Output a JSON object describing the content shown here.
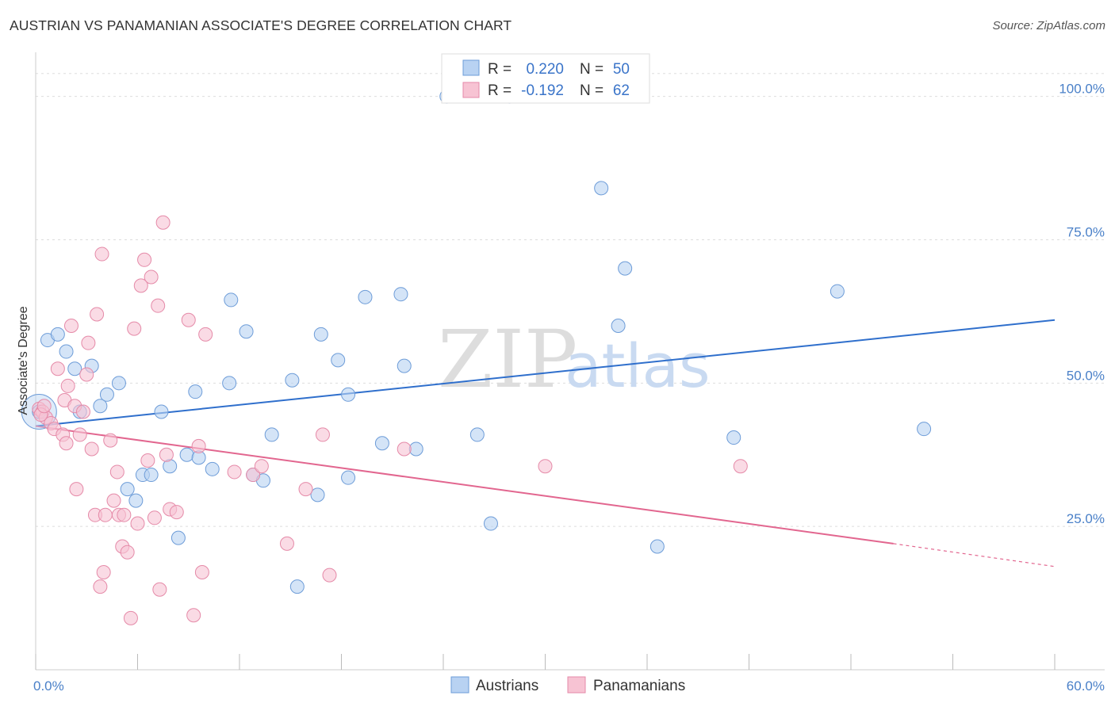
{
  "header": {
    "title": "AUSTRIAN VS PANAMANIAN ASSOCIATE'S DEGREE CORRELATION CHART",
    "source": "Source: ZipAtlas.com"
  },
  "watermark": {
    "part1": "ZIP",
    "part2": "atlas"
  },
  "colors": {
    "blue_fill": "#b8d2f2",
    "blue_stroke": "#6d9cd8",
    "blue_line": "#2f6fcc",
    "pink_fill": "#f7c3d3",
    "pink_stroke": "#e58aa8",
    "pink_line": "#e2668f",
    "tick_text": "#4a80c8",
    "grid": "#dddddd"
  },
  "stats_box": {
    "rows": [
      {
        "r_label": "R =",
        "r_value": "0.220",
        "n_label": "N =",
        "n_value": "50"
      },
      {
        "r_label": "R =",
        "r_value": "-0.192",
        "n_label": "N =",
        "n_value": "62"
      }
    ]
  },
  "chart_data": {
    "type": "scatter",
    "title": "AUSTRIAN VS PANAMANIAN ASSOCIATE'S DEGREE CORRELATION CHART",
    "xlabel": "",
    "ylabel": "Associate's Degree",
    "xlim": [
      0,
      60
    ],
    "ylim": [
      0,
      107
    ],
    "x_tick_labels": [
      {
        "value": 0,
        "label": "0.0%"
      },
      {
        "value": 60,
        "label": "60.0%"
      }
    ],
    "x_minor_ticks": [
      0,
      6,
      12,
      18,
      24,
      30,
      36,
      42,
      48,
      54,
      60
    ],
    "y_ticks": [
      {
        "value": 25,
        "label": "25.0%"
      },
      {
        "value": 50,
        "label": "50.0%"
      },
      {
        "value": 75,
        "label": "75.0%"
      },
      {
        "value": 100,
        "label": "100.0%"
      }
    ],
    "grid": true,
    "legend_position": "bottom",
    "series": [
      {
        "name": "Austrians",
        "color": "#b8d2f2",
        "points": [
          [
            0.2,
            45.0
          ],
          [
            0.7,
            57.5
          ],
          [
            1.3,
            58.5
          ],
          [
            1.8,
            55.5
          ],
          [
            2.3,
            52.5
          ],
          [
            2.6,
            45.0
          ],
          [
            3.3,
            53.0
          ],
          [
            3.8,
            46.0
          ],
          [
            4.2,
            48.0
          ],
          [
            4.9,
            50.0
          ],
          [
            5.4,
            31.5
          ],
          [
            5.9,
            29.5
          ],
          [
            6.3,
            34.0
          ],
          [
            6.8,
            34.0
          ],
          [
            7.4,
            45.0
          ],
          [
            7.9,
            35.5
          ],
          [
            8.4,
            23.0
          ],
          [
            8.9,
            37.5
          ],
          [
            9.4,
            48.5
          ],
          [
            9.6,
            37.0
          ],
          [
            10.4,
            35.0
          ],
          [
            11.4,
            50.0
          ],
          [
            11.5,
            64.5
          ],
          [
            12.4,
            59.0
          ],
          [
            12.8,
            34.0
          ],
          [
            13.4,
            33.0
          ],
          [
            13.9,
            41.0
          ],
          [
            15.1,
            50.5
          ],
          [
            15.4,
            14.5
          ],
          [
            16.6,
            30.5
          ],
          [
            16.8,
            58.5
          ],
          [
            17.8,
            54.0
          ],
          [
            18.4,
            48.0
          ],
          [
            18.4,
            33.5
          ],
          [
            19.4,
            65.0
          ],
          [
            20.4,
            39.5
          ],
          [
            21.5,
            65.5
          ],
          [
            21.7,
            53.0
          ],
          [
            22.4,
            38.5
          ],
          [
            24.2,
            100.0
          ],
          [
            26.0,
            41.0
          ],
          [
            26.8,
            25.5
          ],
          [
            27.9,
            100.0
          ],
          [
            33.3,
            84.0
          ],
          [
            34.3,
            60.0
          ],
          [
            34.7,
            70.0
          ],
          [
            36.6,
            21.5
          ],
          [
            41.1,
            40.5
          ],
          [
            47.2,
            66.0
          ],
          [
            52.3,
            42.0
          ]
        ]
      },
      {
        "name": "Panamanians",
        "color": "#f7c3d3",
        "points": [
          [
            0.2,
            45.5
          ],
          [
            0.4,
            45.0
          ],
          [
            0.6,
            44.0
          ],
          [
            0.9,
            43.0
          ],
          [
            1.1,
            42.0
          ],
          [
            1.3,
            52.5
          ],
          [
            1.6,
            41.0
          ],
          [
            1.7,
            47.0
          ],
          [
            1.8,
            39.5
          ],
          [
            1.9,
            49.5
          ],
          [
            2.1,
            60.0
          ],
          [
            2.3,
            46.0
          ],
          [
            2.4,
            31.5
          ],
          [
            2.6,
            41.0
          ],
          [
            2.8,
            45.0
          ],
          [
            3.0,
            51.5
          ],
          [
            3.1,
            57.0
          ],
          [
            3.3,
            38.5
          ],
          [
            3.5,
            27.0
          ],
          [
            3.6,
            62.0
          ],
          [
            3.8,
            14.5
          ],
          [
            3.9,
            72.5
          ],
          [
            4.1,
            27.0
          ],
          [
            4.4,
            40.0
          ],
          [
            4.6,
            29.5
          ],
          [
            4.8,
            34.5
          ],
          [
            4.9,
            27.0
          ],
          [
            5.1,
            21.5
          ],
          [
            5.2,
            27.0
          ],
          [
            5.4,
            20.5
          ],
          [
            5.6,
            9.0
          ],
          [
            5.8,
            59.5
          ],
          [
            6.0,
            25.5
          ],
          [
            6.2,
            67.0
          ],
          [
            6.4,
            71.5
          ],
          [
            6.6,
            36.5
          ],
          [
            6.8,
            68.5
          ],
          [
            7.0,
            26.5
          ],
          [
            7.2,
            63.5
          ],
          [
            7.3,
            14.0
          ],
          [
            7.5,
            78.0
          ],
          [
            7.7,
            37.5
          ],
          [
            7.9,
            28.0
          ],
          [
            8.3,
            27.5
          ],
          [
            9.0,
            61.0
          ],
          [
            9.3,
            9.5
          ],
          [
            9.6,
            39.0
          ],
          [
            9.8,
            17.0
          ],
          [
            10.0,
            58.5
          ],
          [
            11.7,
            34.5
          ],
          [
            12.8,
            34.0
          ],
          [
            13.3,
            35.5
          ],
          [
            14.8,
            22.0
          ],
          [
            15.9,
            31.5
          ],
          [
            16.9,
            41.0
          ],
          [
            17.3,
            16.5
          ],
          [
            21.7,
            38.5
          ],
          [
            30.0,
            35.5
          ],
          [
            41.5,
            35.5
          ],
          [
            0.3,
            44.5
          ],
          [
            0.5,
            46.0
          ],
          [
            4.0,
            17.0
          ]
        ]
      }
    ],
    "trend_lines": [
      {
        "series": "Austrians",
        "x0": 0,
        "y0": 42.5,
        "x1": 60,
        "y1": 61.0
      },
      {
        "series": "Panamanians",
        "x0": 0,
        "y0": 42.5,
        "x1": 50.5,
        "y1": 22.0,
        "dash_to_x": 60,
        "dash_to_y": 18.0
      }
    ]
  }
}
